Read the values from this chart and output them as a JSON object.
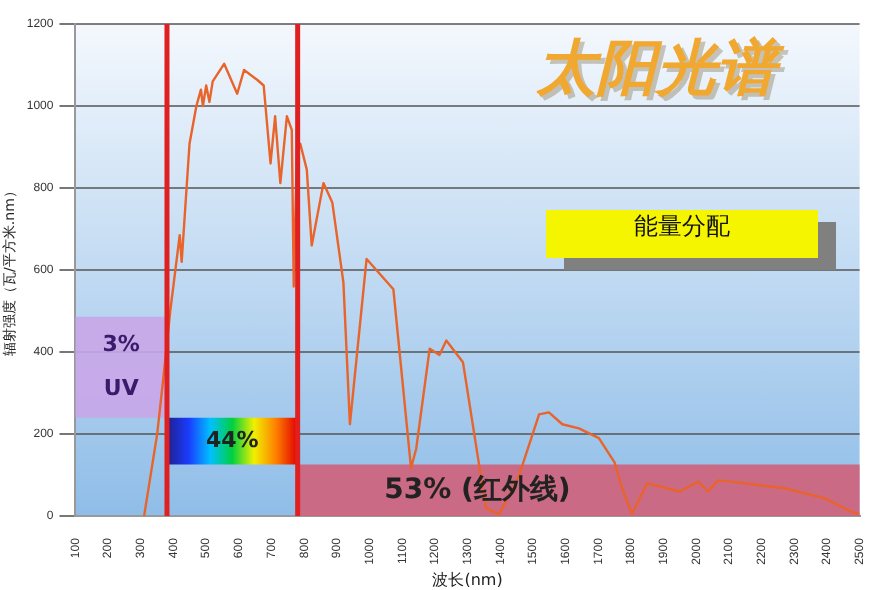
{
  "chart_data": {
    "type": "line",
    "title": "太阳光谱",
    "xlabel": "波长(nm)",
    "ylabel": "辐射强度（瓦/平方米.nm）",
    "x": [
      310,
      350,
      368,
      390,
      419,
      425,
      449,
      470,
      484,
      490,
      500,
      510,
      520,
      555,
      595,
      616,
      656,
      676,
      697,
      711,
      727,
      747,
      762,
      768,
      778,
      788,
      808,
      823,
      859,
      886,
      920,
      940,
      991,
      1073,
      1103,
      1127,
      1143,
      1184,
      1214,
      1235,
      1286,
      1337,
      1357,
      1397,
      1458,
      1519,
      1549,
      1590,
      1641,
      1702,
      1750,
      1773,
      1803,
      1850,
      1950,
      2006,
      2036,
      2067,
      2108,
      2270,
      2392,
      2473,
      2500
    ],
    "series": [
      {
        "color": "#e8642a",
        "values": [
          0,
          200,
          330,
          500,
          685,
          620,
          908,
          1000,
          1040,
          1000,
          1050,
          1010,
          1060,
          1103,
          1030,
          1088,
          1064,
          1050,
          860,
          975,
          812,
          975,
          942,
          560,
          900,
          908,
          845,
          660,
          812,
          765,
          570,
          224,
          627,
          553,
          311,
          117,
          165,
          408,
          393,
          428,
          375,
          117,
          19,
          5,
          100,
          248,
          253,
          224,
          214,
          190,
          131,
          68,
          5,
          80,
          60,
          84,
          60,
          87,
          84,
          68,
          44,
          11,
          5
        ]
      }
    ],
    "xlim": [
      100,
      2500
    ],
    "xticks": [
      100,
      200,
      300,
      400,
      500,
      600,
      700,
      800,
      900,
      1000,
      1100,
      1200,
      1300,
      1400,
      1500,
      1600,
      1700,
      1800,
      1900,
      2000,
      2100,
      2200,
      2300,
      2400,
      2500
    ],
    "ylim": [
      0,
      1200
    ],
    "yticks": [
      0,
      200,
      400,
      600,
      800,
      1000,
      1200
    ],
    "grid": "y",
    "legend": false,
    "marker": "none",
    "line_style": "solid",
    "ref_lines": [
      {
        "axis": "x",
        "value": 380,
        "color": "#e02020"
      },
      {
        "axis": "x",
        "value": 780,
        "color": "#e02020"
      }
    ],
    "bands": [
      {
        "axis": "x",
        "from": 100,
        "to": 380,
        "label": "3%\nUV",
        "color": "#c9a6e8"
      },
      {
        "axis": "x",
        "from": 380,
        "to": 780,
        "label": "44%"
      },
      {
        "axis": "x",
        "from": 780,
        "to": 2500,
        "label": "53% (红外线)",
        "color": "#d0607a"
      }
    ],
    "annotations": [
      "能量分配"
    ]
  }
}
